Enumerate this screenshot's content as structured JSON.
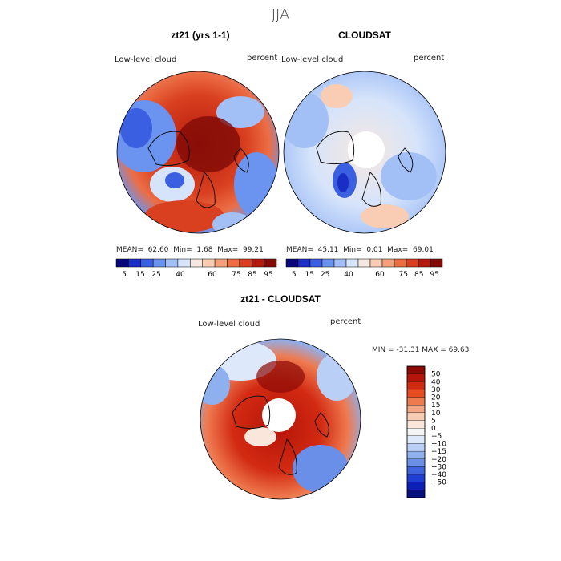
{
  "season": "JJA",
  "panels": [
    {
      "title": "zt21 (yrs 1-1)",
      "variable": "Low-level cloud",
      "units": "percent",
      "stats": {
        "mean_label": "MEAN=",
        "mean": "62.60",
        "min_label": "Min=",
        "min": "1.68",
        "max_label": "Max=",
        "max": "99.21"
      }
    },
    {
      "title": "CLOUDSAT",
      "variable": "Low-level cloud",
      "units": "percent",
      "stats": {
        "mean_label": "MEAN=",
        "mean": "45.11",
        "min_label": "Min=",
        "min": "0.01",
        "max_label": "Max=",
        "max": "69.01"
      }
    }
  ],
  "abs_colorbar": {
    "labels": [
      "5",
      "15",
      "25",
      "40",
      "60",
      "75",
      "85",
      "95"
    ],
    "colors": [
      "#08087a",
      "#1a2ec4",
      "#3a5fe0",
      "#6b93f0",
      "#a3c0f6",
      "#d6e4fb",
      "#f6e8e0",
      "#f9cdb4",
      "#f5a07a",
      "#ec6e45",
      "#d94020",
      "#b31a0c",
      "#7f0a06"
    ]
  },
  "diff_panel": {
    "title": "zt21 - CLOUDSAT",
    "variable": "Low-level cloud",
    "units": "percent",
    "minmax_text": "MIN = -31.31 MAX =  69.63"
  },
  "diff_colorbar": {
    "labels": [
      "50",
      "40",
      "30",
      "20",
      "15",
      "10",
      "5",
      "0",
      "−5",
      "−10",
      "−15",
      "−20",
      "−30",
      "−40",
      "−50"
    ],
    "colors": [
      "#8b0a05",
      "#b5140a",
      "#d22a12",
      "#e84a22",
      "#ef7a4f",
      "#f4a583",
      "#f8cbb3",
      "#fbe6dc",
      "#f4f4f4",
      "#dde8fa",
      "#b9cff5",
      "#8fb0ef",
      "#6a8fe8",
      "#3f63dc",
      "#1f3fd2",
      "#0b1fb6",
      "#06107c"
    ]
  },
  "chart_data": {
    "type": "heatmap",
    "description_fields": {
      "figure": "JJA low-level cloud polar stereographic maps"
    },
    "panels": [
      {
        "name": "zt21 (yrs 1-1)",
        "mean": 62.6,
        "min": 1.68,
        "max": 99.21,
        "units": "percent"
      },
      {
        "name": "CLOUDSAT",
        "mean": 45.11,
        "min": 0.01,
        "max": 69.01,
        "units": "percent"
      },
      {
        "name": "zt21 - CLOUDSAT",
        "min": -31.31,
        "max": 69.63,
        "units": "percent"
      }
    ],
    "abs_levels": [
      5,
      15,
      25,
      40,
      60,
      75,
      85,
      95
    ],
    "diff_levels": [
      50,
      40,
      30,
      20,
      15,
      10,
      5,
      0,
      -5,
      -10,
      -15,
      -20,
      -30,
      -40,
      -50
    ]
  }
}
